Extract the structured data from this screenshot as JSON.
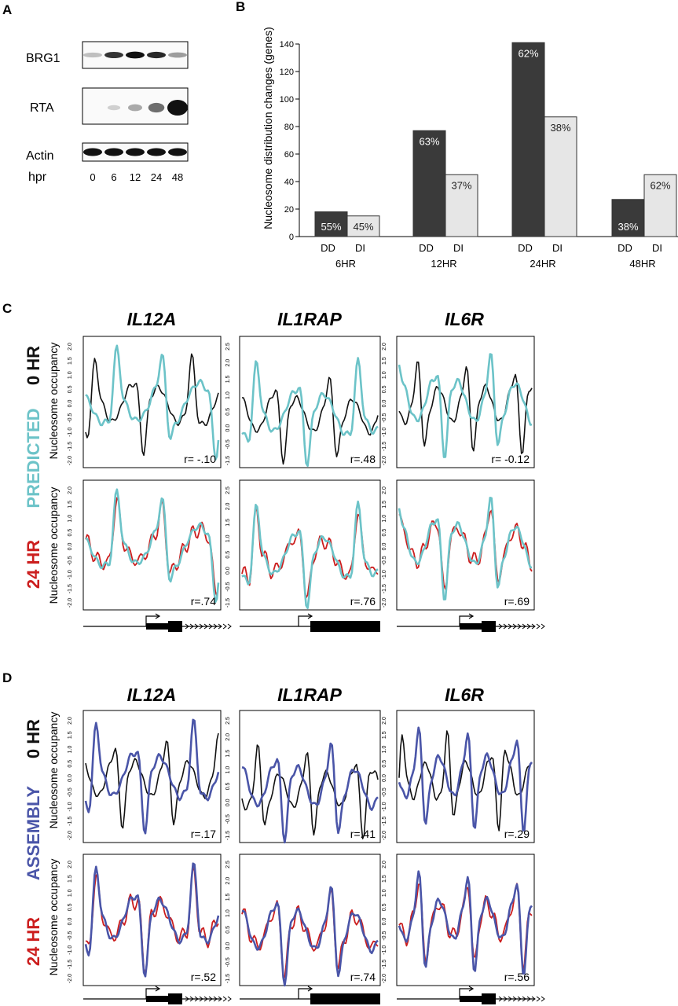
{
  "panel_labels": {
    "a": "A",
    "b": "B",
    "c": "C",
    "d": "D"
  },
  "panel_a": {
    "blots": [
      {
        "label": "BRG1",
        "intensities": [
          0.1,
          0.7,
          0.9,
          0.75,
          0.25
        ]
      },
      {
        "label": "RTA",
        "intensities": [
          0.0,
          0.03,
          0.2,
          0.45,
          1.0
        ]
      },
      {
        "label": "Actin",
        "intensities": [
          0.95,
          0.95,
          0.95,
          0.95,
          0.95
        ]
      }
    ],
    "lane_axis_label": "hpr",
    "lanes": [
      "0",
      "6",
      "12",
      "24",
      "48"
    ]
  },
  "chart_data": [
    {
      "type": "bar",
      "ylabel": "Nucleosome distribution changes (genes)",
      "ylim": [
        0,
        140
      ],
      "yticks": [
        "0",
        "20",
        "40",
        "60",
        "80",
        "100",
        "120",
        "140"
      ],
      "groups": [
        "6HR",
        "12HR",
        "24HR",
        "48HR"
      ],
      "bar_categories": [
        "DD",
        "DI"
      ],
      "series": [
        {
          "values": [
            18,
            77,
            141,
            27
          ],
          "labels": [
            "55%",
            "63%",
            "62%",
            "38%"
          ],
          "color": "#3a3a3a"
        },
        {
          "values": [
            15,
            45,
            87,
            45
          ],
          "labels": [
            "45%",
            "37%",
            "38%",
            "62%"
          ],
          "color": "#e6e6e6"
        }
      ]
    },
    {
      "type": "line",
      "panel": "C",
      "genes": [
        "IL12A",
        "IL1RAP",
        "IL6R"
      ],
      "row_labels": [
        "0 HR",
        "PREDICTED",
        "24 HR"
      ],
      "ylabel": "Nucleosome occupancy",
      "yticks_common": [
        "-2.0",
        "-1.5",
        "-1.0",
        "-0.5",
        "0.0",
        "0.5",
        "1.0",
        "1.5",
        "2.0"
      ],
      "yticks_il1rap": [
        "-1.5",
        "-0.5",
        "0.0",
        "0.5",
        "1.0",
        "1.5",
        "2.0",
        "2.5"
      ],
      "colors": {
        "0 HR": "#111111",
        "PREDICTED": "#6cc3c8",
        "24 HR": "#cc1e1e"
      },
      "r_values": {
        "0 HR": [
          "r= -.10",
          "r=.48",
          "r= -0.12"
        ],
        "24 HR": [
          "r=.74",
          "r=.76",
          "r=.69"
        ]
      }
    },
    {
      "type": "line",
      "panel": "D",
      "genes": [
        "IL12A",
        "IL1RAP",
        "IL6R"
      ],
      "row_labels": [
        "0 HR",
        "ASSEMBLY",
        "24 HR"
      ],
      "ylabel": "Nucleosome occupancy",
      "yticks_common": [
        "-2.0",
        "-1.5",
        "-1.0",
        "-0.5",
        "0.0",
        "0.5",
        "1.0",
        "1.5",
        "2.0"
      ],
      "yticks_il1rap": [
        "-1.5",
        "-0.5",
        "0.0",
        "0.5",
        "1.0",
        "1.5",
        "2.0",
        "2.5"
      ],
      "colors": {
        "0 HR": "#111111",
        "ASSEMBLY": "#4a55a8",
        "24 HR": "#cc1e1e"
      },
      "r_values": {
        "0 HR": [
          "r=.17",
          "r=.41",
          "r=.29"
        ],
        "24 HR": [
          "r=.52",
          "r=.74",
          "r=.56"
        ]
      }
    }
  ]
}
